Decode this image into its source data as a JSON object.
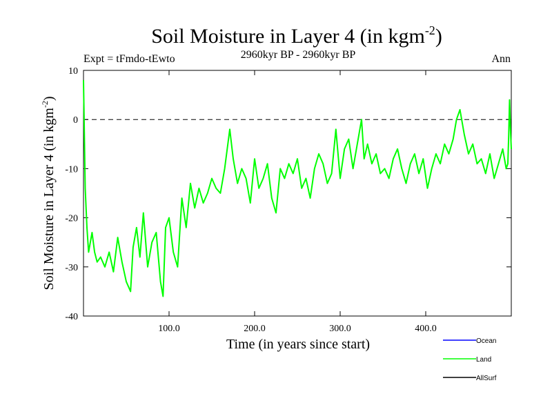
{
  "chart_data": {
    "type": "line",
    "title": "Soil Moisture in Layer 4 (in kgm",
    "title_superscript": "-2",
    "title_suffix": ")",
    "subtitle": "2960kyr BP - 2960kyr BP",
    "experiment_label": "Expt = tFmdo-tEwto",
    "season_label": "Ann",
    "xlabel": "Time (in years since start)",
    "ylabel": "Soil Moisture in Layer 4 (in kgm",
    "ylabel_superscript": "-2",
    "ylabel_suffix": ")",
    "xlim": [
      0,
      500
    ],
    "ylim": [
      -40,
      10
    ],
    "x_ticks": [
      100,
      200,
      300,
      400
    ],
    "x_tick_labels": [
      "100.0",
      "200.0",
      "300.0",
      "400.0"
    ],
    "y_ticks": [
      10,
      0,
      -10,
      -20,
      -30,
      -40
    ],
    "y_tick_labels": [
      "10",
      "0",
      "-10",
      "-20",
      "-30",
      "-40"
    ],
    "reference_line": 0,
    "legend": [
      {
        "name": "Ocean",
        "color": "#0000ff"
      },
      {
        "name": "Land",
        "color": "#00ff00"
      },
      {
        "name": "AllSurf",
        "color": "#000000"
      }
    ],
    "series": [
      {
        "name": "Land",
        "color": "#00ff00",
        "x": [
          0,
          2,
          4,
          6,
          8,
          10,
          13,
          16,
          20,
          25,
          30,
          35,
          40,
          45,
          50,
          55,
          58,
          62,
          66,
          70,
          75,
          80,
          85,
          90,
          93,
          96,
          100,
          105,
          110,
          115,
          120,
          125,
          130,
          135,
          140,
          145,
          150,
          155,
          160,
          165,
          168,
          171,
          175,
          180,
          185,
          190,
          195,
          200,
          205,
          210,
          215,
          220,
          225,
          230,
          235,
          240,
          245,
          250,
          255,
          260,
          265,
          270,
          275,
          280,
          285,
          290,
          295,
          300,
          305,
          310,
          315,
          320,
          325,
          328,
          332,
          337,
          342,
          347,
          352,
          357,
          362,
          367,
          372,
          377,
          382,
          387,
          392,
          397,
          402,
          407,
          412,
          417,
          422,
          427,
          432,
          436,
          440,
          445,
          450,
          455,
          460,
          465,
          470,
          475,
          480,
          485,
          490,
          494,
          496,
          497,
          498,
          499,
          500
        ],
        "y": [
          8,
          -14,
          -22,
          -27,
          -25,
          -23,
          -27,
          -29,
          -28,
          -30,
          -27,
          -31,
          -24,
          -29,
          -33,
          -35,
          -26,
          -22,
          -28,
          -19,
          -30,
          -25,
          -23,
          -33,
          -36,
          -22,
          -20,
          -27,
          -30,
          -16,
          -22,
          -13,
          -18,
          -14,
          -17,
          -15,
          -12,
          -14,
          -15,
          -10,
          -6,
          -2,
          -8,
          -13,
          -10,
          -12,
          -17,
          -8,
          -14,
          -12,
          -9,
          -16,
          -19,
          -10,
          -12,
          -9,
          -11,
          -8,
          -14,
          -12,
          -16,
          -10,
          -7,
          -9,
          -13,
          -11,
          -2,
          -12,
          -6,
          -4,
          -10,
          -5,
          0,
          -8,
          -5,
          -9,
          -7,
          -11,
          -10,
          -12,
          -8,
          -6,
          -10,
          -13,
          -9,
          -7,
          -11,
          -8,
          -14,
          -10,
          -7,
          -9,
          -5,
          -7,
          -4,
          0,
          2,
          -3,
          -7,
          -5,
          -9,
          -8,
          -11,
          -7,
          -12,
          -9,
          -6,
          -10,
          -9,
          -3,
          4,
          -2,
          -6
        ]
      }
    ]
  }
}
